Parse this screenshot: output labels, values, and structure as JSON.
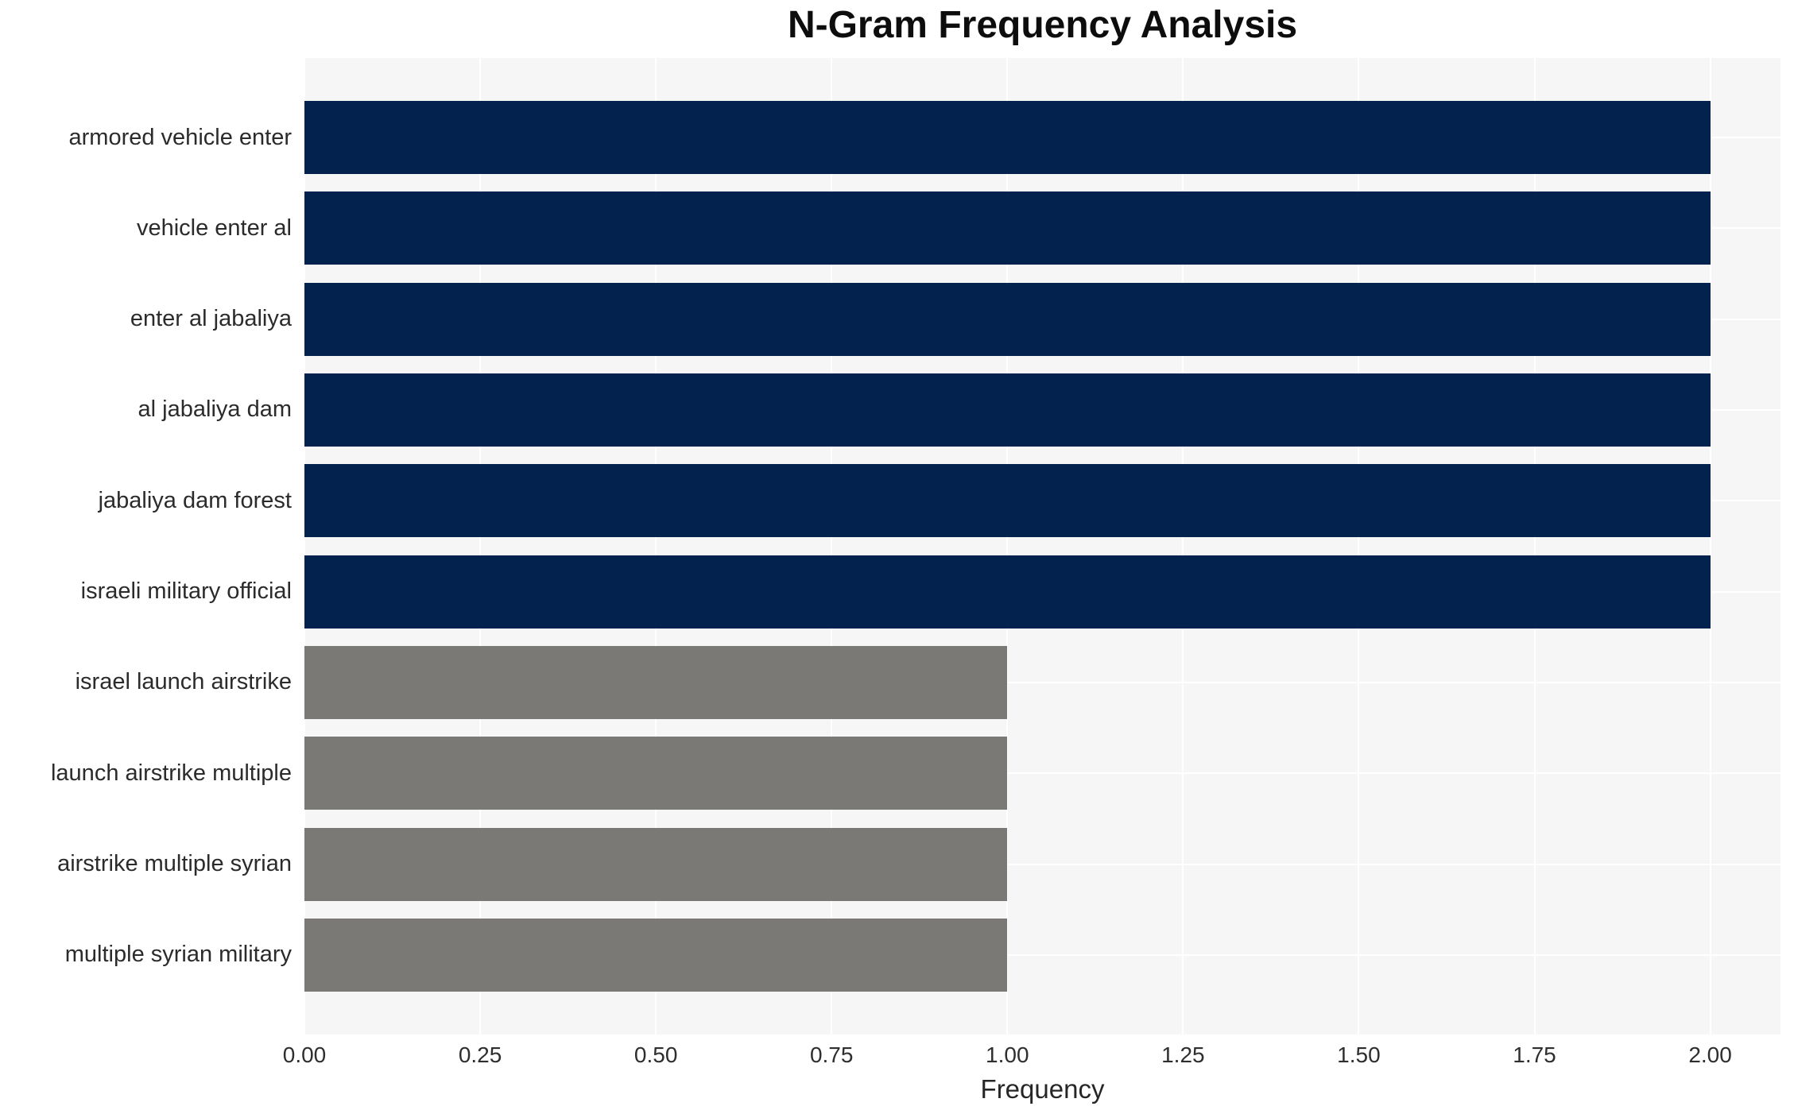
{
  "chart_data": {
    "type": "bar",
    "orientation": "horizontal",
    "title": "N-Gram Frequency Analysis",
    "xlabel": "Frequency",
    "ylabel": "",
    "categories": [
      "armored vehicle enter",
      "vehicle enter al",
      "enter al jabaliya",
      "al jabaliya dam",
      "jabaliya dam forest",
      "israeli military official",
      "israel launch airstrike",
      "launch airstrike multiple",
      "airstrike multiple syrian",
      "multiple syrian military"
    ],
    "values": [
      2,
      2,
      2,
      2,
      2,
      2,
      1,
      1,
      1,
      1
    ],
    "bar_colors": [
      "#03234e",
      "#03234e",
      "#03234e",
      "#03234e",
      "#03234e",
      "#03234e",
      "#7b7976",
      "#7b7976",
      "#7b7976",
      "#7b7976"
    ],
    "xlim": [
      0,
      2.1
    ],
    "xtick_labels": [
      "0.00",
      "0.25",
      "0.50",
      "0.75",
      "1.00",
      "1.25",
      "1.50",
      "1.75",
      "2.00"
    ],
    "xtick_values": [
      0,
      0.25,
      0.5,
      0.75,
      1.0,
      1.25,
      1.5,
      1.75,
      2.0
    ],
    "grid": "white gridlines on light-gray plot background",
    "legend": "none",
    "colors": {
      "high_bar": "#03234e",
      "low_bar": "#7b7976",
      "plot_background": "#f7f6f6",
      "gridline": "#ffffff",
      "figure_background": "#ffffff",
      "text": "#2b2b2b"
    }
  }
}
